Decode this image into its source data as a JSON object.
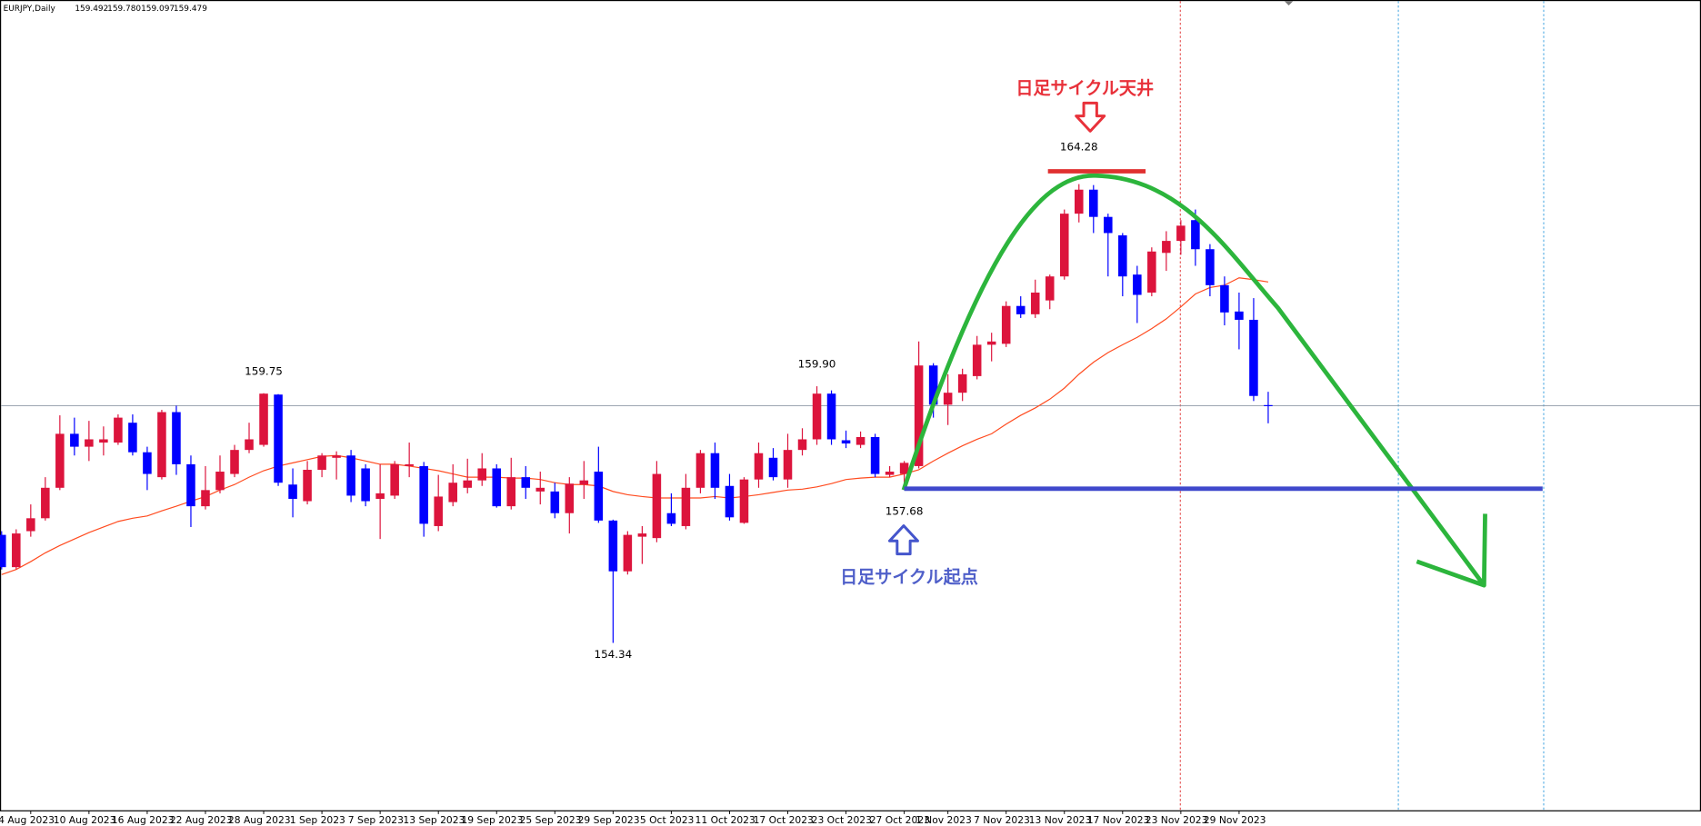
{
  "header": {
    "symbol": "EURJPY,Daily",
    "ohlc": [
      "159.492",
      "159.780",
      "159.097",
      "159.479"
    ]
  },
  "chart_data": {
    "type": "candlestick",
    "categories": [
      null,
      null,
      "4 Aug 2023",
      null,
      null,
      null,
      "10 Aug 2023",
      null,
      null,
      null,
      "16 Aug 2023",
      null,
      null,
      null,
      "22 Aug 2023",
      null,
      null,
      null,
      "28 Aug 2023",
      null,
      null,
      null,
      "1 Sep 2023",
      null,
      null,
      null,
      "7 Sep 2023",
      null,
      null,
      null,
      "13 Sep 2023",
      null,
      null,
      null,
      "19 Sep 2023",
      null,
      null,
      null,
      "25 Sep 2023",
      null,
      null,
      null,
      "29 Sep 2023",
      null,
      null,
      null,
      "5 Oct 2023",
      null,
      null,
      null,
      "11 Oct 2023",
      null,
      null,
      null,
      "17 Oct 2023",
      null,
      null,
      null,
      "23 Oct 2023",
      null,
      null,
      null,
      "27 Oct 2023",
      null,
      null,
      "1 Nov 2023",
      null,
      null,
      null,
      "7 Nov 2023",
      null,
      null,
      null,
      "13 Nov 2023",
      null,
      null,
      null,
      "17 Nov 2023",
      null,
      null,
      null,
      "23 Nov 2023",
      null,
      null,
      null,
      "29 Nov 2023",
      null,
      null
    ],
    "open": [
      156.68,
      155.98,
      156.76,
      157.04,
      157.7,
      158.87,
      158.59,
      158.68,
      158.68,
      159.11,
      158.47,
      157.93,
      159.34,
      158.21,
      157.3,
      157.65,
      158.0,
      158.52,
      158.63,
      159.72,
      157.77,
      157.41,
      158.09,
      158.35,
      158.4,
      158.12,
      157.46,
      157.53,
      158.17,
      158.17,
      156.87,
      157.39,
      157.7,
      157.86,
      158.12,
      157.3,
      157.93,
      157.62,
      157.62,
      157.15,
      157.77,
      158.05,
      156.99,
      155.89,
      156.64,
      156.61,
      157.15,
      156.87,
      157.7,
      158.45,
      157.74,
      156.94,
      157.88,
      158.35,
      157.88,
      158.52,
      158.75,
      159.74,
      158.73,
      158.63,
      158.8,
      157.98,
      158.0,
      158.17,
      160.35,
      159.5,
      159.76,
      160.12,
      160.8,
      160.82,
      161.64,
      161.46,
      161.76,
      162.28,
      163.64,
      164.16,
      163.57,
      163.17,
      162.32,
      161.93,
      162.79,
      163.05,
      163.5,
      162.87,
      162.09,
      161.52,
      161.34,
      159.492
    ],
    "high": [
      156.76,
      156.8,
      157.34,
      157.93,
      159.27,
      159.22,
      159.15,
      159.03,
      159.29,
      159.29,
      158.59,
      159.39,
      159.48,
      158.4,
      158.17,
      158.4,
      158.63,
      159.11,
      159.75,
      159.73,
      158.12,
      158.28,
      158.45,
      158.49,
      158.52,
      158.21,
      158.21,
      158.28,
      158.68,
      158.26,
      157.98,
      158.21,
      158.33,
      158.45,
      158.21,
      158.35,
      158.17,
      158.05,
      157.81,
      157.93,
      158.28,
      158.59,
      157.01,
      156.76,
      156.87,
      158.28,
      157.58,
      158.0,
      158.52,
      158.68,
      158.0,
      157.93,
      158.68,
      158.56,
      158.87,
      158.99,
      159.9,
      159.81,
      158.94,
      158.92,
      158.87,
      158.17,
      158.28,
      160.87,
      160.4,
      160.16,
      160.28,
      160.99,
      161.06,
      161.74,
      161.85,
      162.21,
      162.32,
      163.73,
      164.28,
      164.26,
      163.64,
      163.22,
      162.51,
      162.91,
      163.26,
      163.5,
      163.73,
      162.98,
      162.28,
      161.93,
      161.81,
      159.78
    ],
    "low": [
      155.93,
      155.93,
      156.64,
      156.99,
      157.65,
      158.4,
      158.28,
      158.4,
      158.63,
      158.4,
      157.65,
      157.88,
      157.98,
      156.85,
      157.23,
      157.58,
      157.93,
      158.45,
      158.59,
      157.74,
      157.06,
      157.34,
      157.93,
      157.88,
      157.39,
      157.3,
      156.59,
      157.46,
      157.93,
      156.64,
      156.76,
      157.3,
      157.58,
      157.74,
      157.27,
      157.23,
      157.46,
      157.34,
      157.04,
      156.71,
      157.46,
      156.94,
      154.34,
      155.82,
      156.05,
      156.52,
      156.87,
      156.8,
      157.58,
      157.46,
      156.99,
      156.92,
      157.7,
      157.86,
      157.7,
      158.4,
      158.63,
      158.63,
      158.56,
      158.56,
      157.93,
      157.93,
      157.68,
      158.12,
      159.22,
      159.06,
      159.58,
      160.05,
      160.44,
      160.75,
      161.38,
      161.38,
      161.57,
      162.21,
      163.45,
      163.22,
      162.28,
      161.85,
      161.27,
      161.85,
      162.4,
      162.75,
      162.51,
      161.85,
      161.22,
      160.7,
      159.58,
      159.097
    ],
    "close": [
      155.98,
      156.71,
      157.04,
      157.7,
      158.87,
      158.59,
      158.75,
      158.75,
      159.22,
      158.47,
      158.0,
      159.34,
      158.21,
      157.3,
      157.65,
      158.05,
      158.52,
      158.75,
      159.74,
      157.81,
      157.46,
      158.09,
      158.4,
      158.4,
      157.53,
      157.41,
      157.58,
      158.21,
      158.21,
      156.92,
      157.51,
      157.81,
      157.86,
      158.12,
      157.3,
      157.93,
      157.7,
      157.7,
      157.15,
      157.79,
      157.86,
      156.99,
      155.89,
      156.68,
      156.71,
      158.0,
      156.92,
      157.7,
      158.45,
      157.7,
      157.06,
      157.88,
      158.45,
      157.93,
      158.52,
      158.75,
      159.74,
      158.75,
      158.66,
      158.8,
      158.0,
      158.05,
      158.24,
      160.35,
      159.5,
      159.76,
      160.16,
      160.8,
      160.87,
      161.64,
      161.46,
      161.93,
      162.28,
      163.64,
      164.16,
      163.57,
      163.22,
      162.28,
      161.88,
      162.82,
      163.05,
      163.38,
      162.87,
      162.09,
      161.5,
      161.34,
      159.69,
      159.479
    ],
    "up_color": "#dc143c",
    "down_color": "#0000ff",
    "ma": {
      "color": "#ff4b1f",
      "values": [
        155.82,
        155.93,
        156.1,
        156.29,
        156.45,
        156.59,
        156.73,
        156.85,
        156.97,
        157.04,
        157.09,
        157.2,
        157.3,
        157.41,
        157.51,
        157.65,
        157.77,
        157.93,
        158.07,
        158.17,
        158.24,
        158.31,
        158.38,
        158.4,
        158.35,
        158.28,
        158.21,
        158.21,
        158.17,
        158.12,
        158.07,
        158.0,
        157.93,
        157.93,
        157.93,
        157.91,
        157.91,
        157.88,
        157.81,
        157.77,
        157.77,
        157.74,
        157.62,
        157.55,
        157.51,
        157.48,
        157.48,
        157.48,
        157.48,
        157.51,
        157.48,
        157.51,
        157.55,
        157.6,
        157.65,
        157.67,
        157.72,
        157.79,
        157.88,
        157.91,
        157.93,
        157.93,
        158.0,
        158.09,
        158.28,
        158.45,
        158.61,
        158.75,
        158.87,
        159.08,
        159.27,
        159.43,
        159.62,
        159.86,
        160.16,
        160.42,
        160.63,
        160.8,
        160.96,
        161.15,
        161.36,
        161.62,
        161.9,
        162.04,
        162.09,
        162.25,
        162.21,
        162.16
      ]
    },
    "ylim": [
      150.7,
      168.27
    ],
    "price_labels": [
      164.28,
      159.75,
      {
        "value": 159.9,
        "label": "159.90"
      },
      157.68,
      154.34
    ],
    "current_price_line": true,
    "annotations": {
      "top": {
        "text": "日足サイクル天井",
        "level": 164.28
      },
      "start": {
        "text": "日足サイクル起点",
        "level": 157.68
      }
    }
  }
}
